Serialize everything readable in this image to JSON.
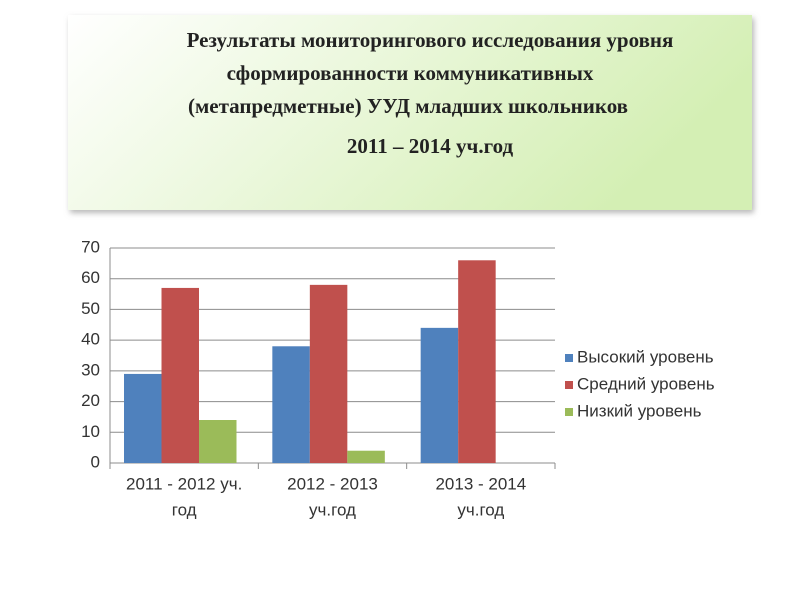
{
  "chart_data": {
    "type": "bar",
    "title": [
      "Результаты мониторингового исследования уровня",
      "сформированности коммуникативных",
      "(метапредметные)  УУД младших школьников",
      "2011 – 2014 уч.год"
    ],
    "categories": [
      [
        "2011 - 2012 уч.",
        "год"
      ],
      [
        "2012 - 2013",
        "уч.год"
      ],
      [
        "2013 - 2014",
        "уч.год"
      ]
    ],
    "series": [
      {
        "name": "Высокий уровень",
        "color": "#4f81bd",
        "values": [
          29,
          38,
          44
        ]
      },
      {
        "name": "Средний уровень",
        "color": "#c0504d",
        "values": [
          57,
          58,
          66
        ]
      },
      {
        "name": "Низкий уровень",
        "color": "#9bbb59",
        "values": [
          14,
          4,
          null
        ]
      }
    ],
    "ylim": [
      0,
      70
    ],
    "yticks": [
      0,
      10,
      20,
      30,
      40,
      50,
      60,
      70
    ],
    "grid": true,
    "legend": "right"
  }
}
